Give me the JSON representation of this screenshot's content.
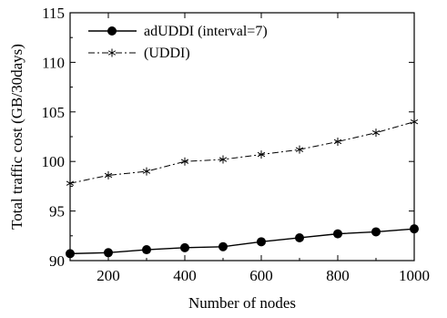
{
  "chart_data": {
    "type": "line",
    "xlabel": "Number of nodes",
    "ylabel": "Total traffic cost (GB/30days)",
    "xlim": [
      100,
      1000
    ],
    "ylim": [
      90,
      115
    ],
    "x_ticks": [
      200,
      400,
      600,
      800,
      1000
    ],
    "y_ticks": [
      90,
      95,
      100,
      105,
      110,
      115
    ],
    "grid": false,
    "legend_position": "top-left",
    "x": [
      100,
      200,
      300,
      400,
      500,
      600,
      700,
      800,
      900,
      1000
    ],
    "series": [
      {
        "name": "adUDDI (interval=7)",
        "marker": "filled-circle",
        "line_style": "solid",
        "color": "#000000",
        "values": [
          90.7,
          90.8,
          91.1,
          91.3,
          91.4,
          91.9,
          92.3,
          92.7,
          92.9,
          93.2
        ]
      },
      {
        "name": "(UDDI)",
        "marker": "asterisk",
        "line_style": "dash-dot",
        "color": "#000000",
        "values": [
          97.8,
          98.6,
          99.0,
          100.0,
          100.2,
          100.7,
          101.2,
          102.0,
          102.9,
          104.0
        ]
      }
    ]
  }
}
